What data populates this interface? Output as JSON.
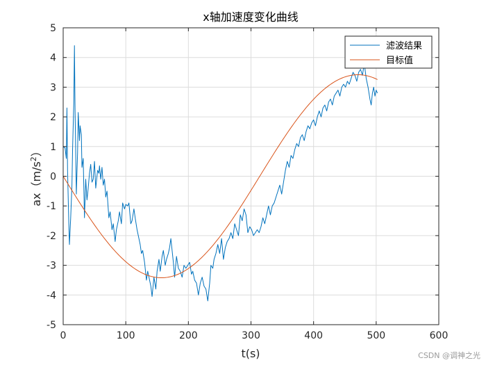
{
  "watermark": "CSDN @调神之光",
  "chart_data": {
    "type": "line",
    "title": "x轴加速度变化曲线",
    "xlabel": "t(s)",
    "ylabel": "ax（m/s²）",
    "ylabel_base": "ax（m/s",
    "ylabel_sup": "2",
    "ylabel_end": "）",
    "xlim": [
      0,
      600
    ],
    "ylim": [
      -5,
      5
    ],
    "xticks": [
      0,
      100,
      200,
      300,
      400,
      500,
      600
    ],
    "yticks": [
      -5,
      -4,
      -3,
      -2,
      -1,
      0,
      1,
      2,
      3,
      4,
      5
    ],
    "grid": true,
    "legend_position": "top-right",
    "colors": {
      "filtered": "#0072BD",
      "target": "#D95319",
      "grid": "#dcdcdc",
      "axis": "#262626"
    },
    "series": [
      {
        "name": "滤波结果",
        "color": "#0072BD",
        "points": [
          [
            0,
            1.0
          ],
          [
            3,
            0.95
          ],
          [
            5,
            0.6
          ],
          [
            6,
            2.3
          ],
          [
            7,
            0.2
          ],
          [
            9,
            -1.6
          ],
          [
            10,
            -2.3
          ],
          [
            12,
            -1.4
          ],
          [
            14,
            -0.3
          ],
          [
            15,
            0.9
          ],
          [
            17,
            2.5
          ],
          [
            18,
            4.4
          ],
          [
            19,
            2.2
          ],
          [
            21,
            -0.6
          ],
          [
            23,
            0.8
          ],
          [
            24,
            2.15
          ],
          [
            26,
            1.2
          ],
          [
            27,
            1.7
          ],
          [
            29,
            1.4
          ],
          [
            30,
            0.3
          ],
          [
            32,
            0.6
          ],
          [
            34,
            -1.4
          ],
          [
            36,
            -0.1
          ],
          [
            38,
            -0.8
          ],
          [
            40,
            -0.4
          ],
          [
            42,
            0.1
          ],
          [
            44,
            0.4
          ],
          [
            46,
            -0.2
          ],
          [
            48,
            -0.1
          ],
          [
            50,
            0.5
          ],
          [
            52,
            -0.4
          ],
          [
            55,
            0.2
          ],
          [
            57,
            0.1
          ],
          [
            58,
            0.35
          ],
          [
            60,
            -0.1
          ],
          [
            62,
            0.3
          ],
          [
            64,
            -0.3
          ],
          [
            66,
            -0.1
          ],
          [
            68,
            -0.7
          ],
          [
            70,
            -0.5
          ],
          [
            73,
            -1.4
          ],
          [
            75,
            -1.2
          ],
          [
            78,
            -1.8
          ],
          [
            80,
            -1.6
          ],
          [
            83,
            -2.2
          ],
          [
            85,
            -1.8
          ],
          [
            88,
            -1.5
          ],
          [
            90,
            -1.2
          ],
          [
            93,
            -1.6
          ],
          [
            95,
            -0.9
          ],
          [
            98,
            -1.1
          ],
          [
            100,
            -0.95
          ],
          [
            103,
            -1.0
          ],
          [
            105,
            -0.9
          ],
          [
            108,
            -1.6
          ],
          [
            110,
            -1.5
          ],
          [
            113,
            -1.1
          ],
          [
            115,
            -1.4
          ],
          [
            118,
            -1.8
          ],
          [
            120,
            -2.0
          ],
          [
            123,
            -2.3
          ],
          [
            125,
            -2.6
          ],
          [
            127,
            -2.5
          ],
          [
            130,
            -2.9
          ],
          [
            133,
            -3.5
          ],
          [
            135,
            -3.2
          ],
          [
            138,
            -3.5
          ],
          [
            140,
            -3.7
          ],
          [
            142,
            -4.05
          ],
          [
            145,
            -3.4
          ],
          [
            148,
            -3.8
          ],
          [
            150,
            -3.2
          ],
          [
            153,
            -2.8
          ],
          [
            155,
            -3.2
          ],
          [
            158,
            -2.7
          ],
          [
            160,
            -2.5
          ],
          [
            163,
            -3.0
          ],
          [
            165,
            -2.8
          ],
          [
            168,
            -2.6
          ],
          [
            170,
            -2.4
          ],
          [
            172,
            -2.1
          ],
          [
            174,
            -2.5
          ],
          [
            176,
            -2.9
          ],
          [
            178,
            -3.4
          ],
          [
            181,
            -2.7
          ],
          [
            184,
            -3.1
          ],
          [
            187,
            -3.2
          ],
          [
            190,
            -3.4
          ],
          [
            193,
            -3.0
          ],
          [
            196,
            -3.1
          ],
          [
            199,
            -3.0
          ],
          [
            202,
            -2.9
          ],
          [
            205,
            -3.3
          ],
          [
            207,
            -3.2
          ],
          [
            210,
            -3.5
          ],
          [
            213,
            -3.6
          ],
          [
            216,
            -4.0
          ],
          [
            219,
            -3.6
          ],
          [
            222,
            -3.4
          ],
          [
            225,
            -3.7
          ],
          [
            228,
            -3.8
          ],
          [
            231,
            -4.2
          ],
          [
            234,
            -3.6
          ],
          [
            236,
            -3.0
          ],
          [
            239,
            -3.1
          ],
          [
            241,
            -2.8
          ],
          [
            244,
            -2.6
          ],
          [
            247,
            -2.3
          ],
          [
            250,
            -2.6
          ],
          [
            253,
            -2.1
          ],
          [
            256,
            -2.8
          ],
          [
            259,
            -2.4
          ],
          [
            262,
            -2.2
          ],
          [
            265,
            -2.1
          ],
          [
            268,
            -1.9
          ],
          [
            271,
            -2.1
          ],
          [
            274,
            -1.6
          ],
          [
            277,
            -1.8
          ],
          [
            280,
            -2.0
          ],
          [
            283,
            -1.3
          ],
          [
            286,
            -1.5
          ],
          [
            289,
            -1.1
          ],
          [
            292,
            -1.3
          ],
          [
            295,
            -1.9
          ],
          [
            298,
            -1.7
          ],
          [
            301,
            -1.8
          ],
          [
            304,
            -2.0
          ],
          [
            307,
            -1.9
          ],
          [
            310,
            -1.8
          ],
          [
            313,
            -1.9
          ],
          [
            316,
            -1.7
          ],
          [
            319,
            -1.4
          ],
          [
            322,
            -1.6
          ],
          [
            325,
            -1.3
          ],
          [
            328,
            -1.0
          ],
          [
            331,
            -1.3
          ],
          [
            334,
            -1.0
          ],
          [
            337,
            -0.9
          ],
          [
            340,
            -0.7
          ],
          [
            343,
            -0.5
          ],
          [
            346,
            -0.3
          ],
          [
            349,
            -0.6
          ],
          [
            352,
            -0.2
          ],
          [
            355,
            0.2
          ],
          [
            358,
            0.5
          ],
          [
            361,
            0.3
          ],
          [
            364,
            0.7
          ],
          [
            367,
            0.6
          ],
          [
            370,
            0.9
          ],
          [
            373,
            1.1
          ],
          [
            376,
            1.0
          ],
          [
            379,
            1.3
          ],
          [
            382,
            1.4
          ],
          [
            385,
            1.2
          ],
          [
            388,
            1.5
          ],
          [
            391,
            1.7
          ],
          [
            394,
            1.6
          ],
          [
            397,
            1.8
          ],
          [
            400,
            1.9
          ],
          [
            403,
            1.7
          ],
          [
            406,
            2.0
          ],
          [
            409,
            2.2
          ],
          [
            412,
            2.0
          ],
          [
            415,
            2.3
          ],
          [
            418,
            2.4
          ],
          [
            421,
            2.2
          ],
          [
            424,
            2.5
          ],
          [
            427,
            2.6
          ],
          [
            430,
            2.4
          ],
          [
            433,
            2.7
          ],
          [
            436,
            2.8
          ],
          [
            439,
            2.9
          ],
          [
            442,
            2.7
          ],
          [
            445,
            3.0
          ],
          [
            448,
            3.1
          ],
          [
            451,
            3.0
          ],
          [
            454,
            3.2
          ],
          [
            457,
            3.1
          ],
          [
            460,
            3.3
          ],
          [
            463,
            3.5
          ],
          [
            466,
            3.4
          ],
          [
            469,
            3.2
          ],
          [
            472,
            3.5
          ],
          [
            475,
            3.6
          ],
          [
            478,
            3.4
          ],
          [
            481,
            3.8
          ],
          [
            484,
            3.3
          ],
          [
            487,
            3.0
          ],
          [
            490,
            2.6
          ],
          [
            492,
            2.4
          ],
          [
            494,
            2.8
          ],
          [
            496,
            3.0
          ],
          [
            498,
            2.7
          ],
          [
            500,
            2.9
          ],
          [
            502,
            2.8
          ]
        ]
      },
      {
        "name": "目标值",
        "color": "#D95319",
        "function": "sine",
        "amplitude": 3.42,
        "period": 628,
        "x_range": [
          0,
          503
        ],
        "sign": -1
      }
    ]
  }
}
